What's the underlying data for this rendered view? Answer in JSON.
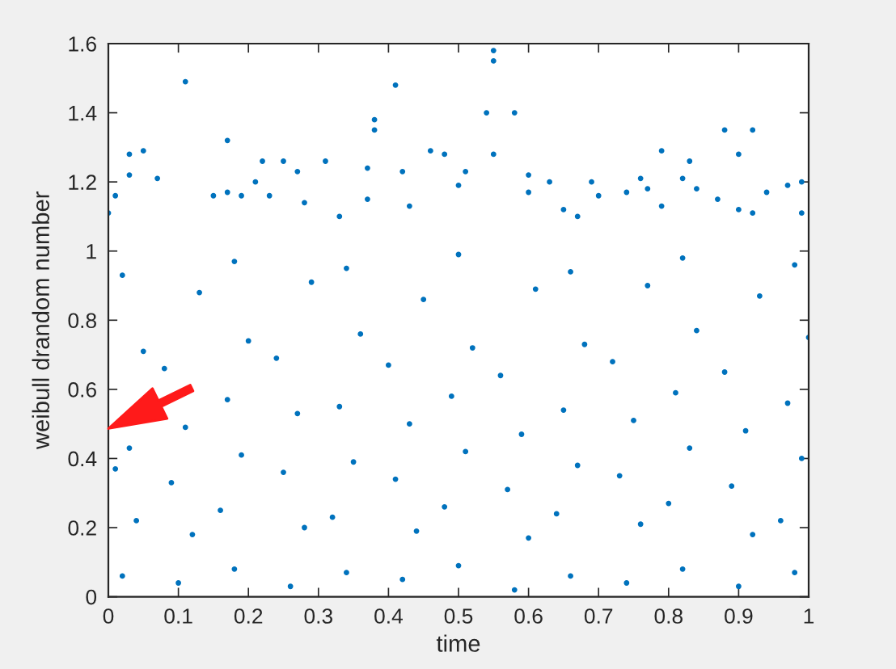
{
  "chart_data": {
    "type": "scatter",
    "xlabel": "time",
    "ylabel": "weibull drandom number",
    "marker": "circle",
    "xlim": [
      0,
      1
    ],
    "ylim": [
      0,
      1.6
    ],
    "xticks": [
      0,
      0.1,
      0.2,
      0.3,
      0.4,
      0.5,
      0.6,
      0.7,
      0.8,
      0.9,
      1
    ],
    "yticks": [
      0,
      0.2,
      0.4,
      0.6,
      0.8,
      1,
      1.2,
      1.4,
      1.6
    ],
    "series": [
      {
        "color": "#0072bd",
        "x": [
          0.11,
          0.41,
          0.38,
          0.38,
          0.17,
          0.03,
          0.05,
          0.03,
          0.07,
          0.01,
          0.0,
          0.22,
          0.25,
          0.27,
          0.31,
          0.37,
          0.42,
          0.46,
          0.48,
          0.51,
          0.15,
          0.17,
          0.19,
          0.21,
          0.23,
          0.28,
          0.33,
          0.37,
          0.43,
          0.5,
          0.55,
          0.55,
          0.54,
          0.58,
          0.55,
          0.6,
          0.6,
          0.63,
          0.65,
          0.69,
          0.7,
          0.67,
          0.74,
          0.76,
          0.77,
          0.79,
          0.79,
          0.83,
          0.82,
          0.84,
          0.88,
          0.92,
          0.9,
          0.87,
          0.9,
          0.94,
          0.99,
          0.99,
          0.92,
          0.97,
          0.02,
          0.04,
          0.01,
          0.03,
          0.05,
          0.02,
          0.1,
          0.12,
          0.09,
          0.11,
          0.08,
          0.13,
          0.18,
          0.16,
          0.19,
          0.17,
          0.2,
          0.18,
          0.26,
          0.28,
          0.25,
          0.27,
          0.24,
          0.29,
          0.34,
          0.32,
          0.35,
          0.33,
          0.36,
          0.34,
          0.42,
          0.44,
          0.41,
          0.43,
          0.4,
          0.45,
          0.5,
          0.48,
          0.51,
          0.49,
          0.52,
          0.5,
          0.58,
          0.6,
          0.57,
          0.59,
          0.56,
          0.61,
          0.66,
          0.64,
          0.67,
          0.65,
          0.68,
          0.66,
          0.74,
          0.76,
          0.73,
          0.75,
          0.72,
          0.77,
          0.82,
          0.8,
          0.83,
          0.81,
          0.84,
          0.82,
          0.9,
          0.92,
          0.89,
          0.91,
          0.88,
          0.93,
          0.98,
          0.96,
          0.99,
          0.97,
          1.0,
          0.98
        ],
        "values": [
          1.49,
          1.48,
          1.38,
          1.35,
          1.32,
          1.28,
          1.29,
          1.22,
          1.21,
          1.16,
          1.11,
          1.26,
          1.26,
          1.23,
          1.26,
          1.24,
          1.23,
          1.29,
          1.28,
          1.23,
          1.16,
          1.17,
          1.16,
          1.2,
          1.16,
          1.14,
          1.1,
          1.15,
          1.13,
          1.19,
          1.58,
          1.55,
          1.4,
          1.4,
          1.28,
          1.22,
          1.17,
          1.2,
          1.12,
          1.2,
          1.16,
          1.1,
          1.17,
          1.21,
          1.18,
          1.29,
          1.13,
          1.26,
          1.21,
          1.18,
          1.35,
          1.35,
          1.28,
          1.15,
          1.12,
          1.17,
          1.2,
          1.11,
          1.11,
          1.19,
          0.06,
          0.22,
          0.37,
          0.43,
          0.71,
          0.93,
          0.04,
          0.18,
          0.33,
          0.49,
          0.66,
          0.88,
          0.08,
          0.25,
          0.41,
          0.57,
          0.74,
          0.97,
          0.03,
          0.2,
          0.36,
          0.53,
          0.69,
          0.91,
          0.07,
          0.23,
          0.39,
          0.55,
          0.76,
          0.95,
          0.05,
          0.19,
          0.34,
          0.5,
          0.67,
          0.86,
          0.09,
          0.26,
          0.42,
          0.58,
          0.72,
          0.99,
          0.02,
          0.17,
          0.31,
          0.47,
          0.64,
          0.89,
          0.06,
          0.24,
          0.38,
          0.54,
          0.73,
          0.94,
          0.04,
          0.21,
          0.35,
          0.51,
          0.68,
          0.9,
          0.08,
          0.27,
          0.43,
          0.59,
          0.77,
          0.98,
          0.03,
          0.18,
          0.32,
          0.48,
          0.65,
          0.87,
          0.07,
          0.22,
          0.4,
          0.56,
          0.75,
          0.96
        ]
      }
    ]
  }
}
